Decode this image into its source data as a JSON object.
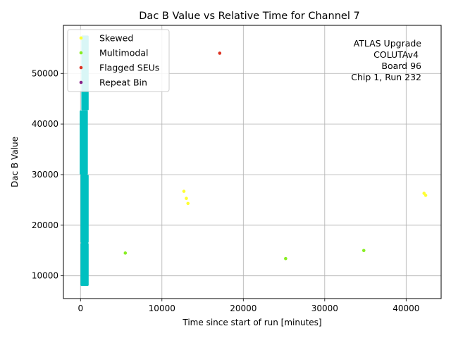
{
  "chart_data": {
    "type": "scatter",
    "title": "Dac B Value vs Relative Time for Channel 7",
    "xlabel": "Time since start of run [minutes]",
    "ylabel": "Dac B Value",
    "xlim": [
      -2100,
      44300
    ],
    "ylim": [
      5500,
      59500
    ],
    "xticks": [
      0,
      10000,
      20000,
      30000,
      40000
    ],
    "yticks": [
      10000,
      20000,
      30000,
      40000,
      50000
    ],
    "grid": true,
    "legend": {
      "placement": "top-left"
    },
    "annotation": [
      "ATLAS Upgrade",
      "COLUTAv4 ",
      " Board 96",
      "Chip 1, Run 232"
    ],
    "series": [
      {
        "name": "Skewed",
        "color": "#ffff33",
        "points": [
          [
            12700,
            26700
          ],
          [
            13000,
            25300
          ],
          [
            13200,
            24300
          ],
          [
            42200,
            26300
          ],
          [
            42400,
            25900
          ]
        ]
      },
      {
        "name": "Multimodal",
        "color": "#88ee22",
        "points": [
          [
            5500,
            14500
          ],
          [
            25200,
            13400
          ],
          [
            34800,
            15000
          ]
        ]
      },
      {
        "name": "Flagged SEUs",
        "color": "#dd3322",
        "points": [
          [
            17100,
            54000
          ]
        ]
      },
      {
        "name": "Repeat Bin",
        "color": "#882288",
        "points": []
      }
    ],
    "bulk": {
      "color": "#00c0c0",
      "bands": [
        {
          "x": [
            0,
            1000
          ],
          "y": [
            8000,
            16500
          ]
        },
        {
          "x": [
            0,
            1000
          ],
          "y": [
            16500,
            30000
          ]
        },
        {
          "x": [
            -100,
            900
          ],
          "y": [
            30000,
            42700
          ]
        },
        {
          "x": [
            100,
            1000
          ],
          "y": [
            42700,
            57500
          ]
        }
      ]
    }
  }
}
